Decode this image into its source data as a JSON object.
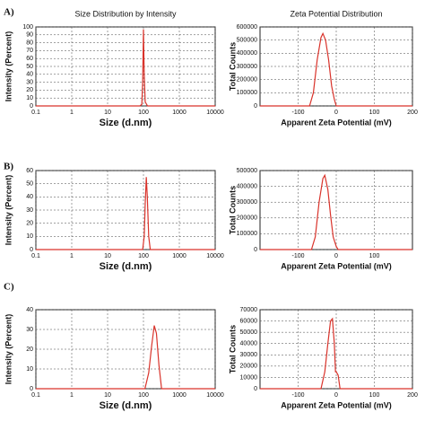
{
  "panel_labels": [
    "A)",
    "B)",
    "C)"
  ],
  "chart_data": [
    {
      "type": "line",
      "title": "Size Distribution by Intensity",
      "xlabel": "Size (d.nm)",
      "ylabel": "Intensity (Percent)",
      "xscale": "log",
      "grid": true,
      "x": [
        0.1,
        80,
        90,
        95,
        100,
        105,
        112,
        130,
        10000
      ],
      "values": [
        0,
        0,
        2,
        30,
        97,
        40,
        5,
        0,
        0
      ],
      "color": "#d9332b",
      "xlim": [
        0.1,
        10000
      ],
      "xticks": [
        0.1,
        1,
        10,
        100,
        1000,
        10000
      ],
      "ylim": [
        0,
        100
      ],
      "yticks": [
        0,
        10,
        20,
        30,
        40,
        50,
        60,
        70,
        80,
        90,
        100
      ]
    },
    {
      "type": "line",
      "title": "Zeta Potential Distribution",
      "xlabel": "Apparent Zeta Potential (mV)",
      "ylabel": "Total Counts",
      "xscale": "linear",
      "grid": true,
      "x": [
        -200,
        -70,
        -60,
        -50,
        -40,
        -35,
        -28,
        -20,
        -12,
        -5,
        0,
        10,
        200
      ],
      "values": [
        0,
        0,
        100000,
        350000,
        520000,
        550000,
        500000,
        350000,
        150000,
        50000,
        0,
        0,
        0
      ],
      "color": "#d9332b",
      "xlim": [
        -200,
        200
      ],
      "xticks": [
        -100,
        0,
        100,
        200
      ],
      "ylim": [
        0,
        600000
      ],
      "yticks": [
        0,
        100000,
        200000,
        300000,
        400000,
        500000,
        600000
      ]
    },
    {
      "type": "line",
      "xlabel": "Size (d.nm)",
      "ylabel": "Intensity (Percent)",
      "xscale": "log",
      "grid": true,
      "x": [
        0.1,
        95,
        105,
        112,
        120,
        128,
        140,
        155,
        10000
      ],
      "values": [
        0,
        0,
        10,
        35,
        55,
        40,
        10,
        0,
        0
      ],
      "color": "#d9332b",
      "xlim": [
        0.1,
        10000
      ],
      "xticks": [
        0.1,
        1,
        10,
        100,
        1000,
        10000
      ],
      "ylim": [
        0,
        60
      ],
      "yticks": [
        0,
        10,
        20,
        30,
        40,
        50,
        60
      ]
    },
    {
      "type": "line",
      "xlabel": "Apparent Zeta Potential (mV)",
      "ylabel": "Total Counts",
      "xscale": "linear",
      "grid": true,
      "x": [
        -200,
        -65,
        -55,
        -45,
        -35,
        -30,
        -22,
        -15,
        -8,
        0,
        5,
        200
      ],
      "values": [
        0,
        0,
        80000,
        300000,
        450000,
        470000,
        380000,
        220000,
        80000,
        20000,
        0,
        0
      ],
      "color": "#d9332b",
      "xlim": [
        -200,
        200
      ],
      "xticks": [
        -100,
        0,
        100
      ],
      "ylim": [
        0,
        500000
      ],
      "yticks": [
        0,
        100000,
        200000,
        300000,
        400000,
        500000
      ]
    },
    {
      "type": "line",
      "xlabel": "Size (d.nm)",
      "ylabel": "Intensity (Percent)",
      "xscale": "log",
      "grid": true,
      "x": [
        0.1,
        110,
        140,
        170,
        200,
        230,
        270,
        320,
        10000
      ],
      "values": [
        0,
        0,
        8,
        22,
        32,
        28,
        12,
        0,
        0
      ],
      "color": "#d9332b",
      "xlim": [
        0.1,
        10000
      ],
      "xticks": [
        0.1,
        1,
        10,
        100,
        1000,
        10000
      ],
      "ylim": [
        0,
        40
      ],
      "yticks": [
        0,
        10,
        20,
        30,
        40
      ]
    },
    {
      "type": "line",
      "xlabel": "Apparent Zeta Potential (mV)",
      "ylabel": "Total Counts",
      "xscale": "linear",
      "grid": true,
      "x": [
        -200,
        -40,
        -30,
        -22,
        -15,
        -10,
        -5,
        -2,
        0,
        5,
        10,
        200
      ],
      "values": [
        0,
        0,
        15000,
        40000,
        60000,
        62000,
        40000,
        15000,
        15000,
        12000,
        0,
        0
      ],
      "color": "#d9332b",
      "xlim": [
        -200,
        200
      ],
      "xticks": [
        -100,
        0,
        100,
        200
      ],
      "ylim": [
        0,
        70000
      ],
      "yticks": [
        0,
        10000,
        20000,
        30000,
        40000,
        50000,
        60000,
        70000
      ]
    }
  ]
}
